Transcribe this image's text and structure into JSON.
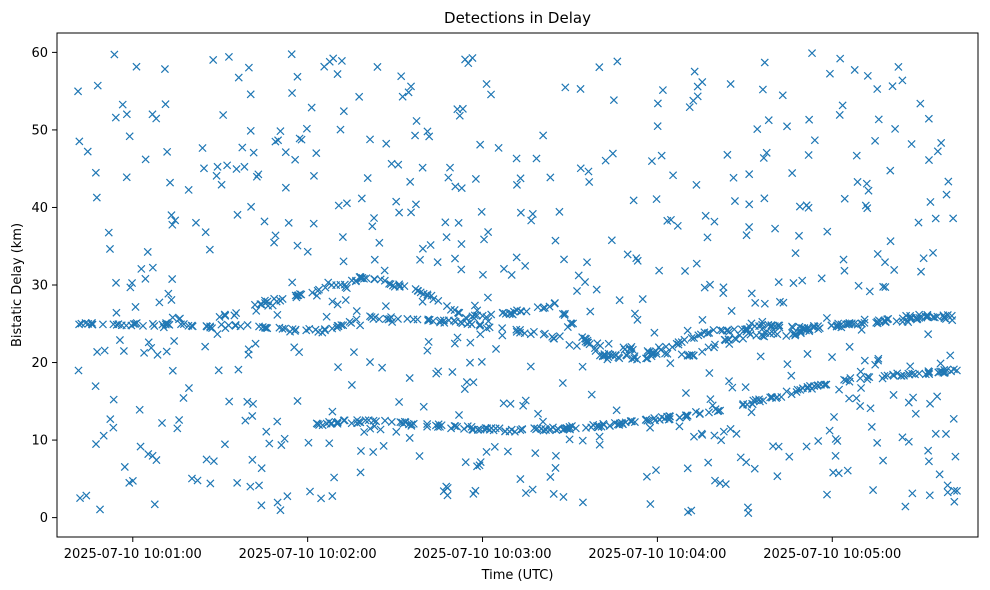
{
  "chart_data": {
    "type": "scatter",
    "title": "Detections in Delay",
    "xlabel": "Time (UTC)",
    "ylabel": "Bistatic Delay (km)",
    "x_start": "2025-07-10 10:00:40",
    "x_end": "2025-07-10 10:05:43",
    "xlim": [
      "2025-07-10 10:00:34",
      "2025-07-10 10:05:50"
    ],
    "ylim": [
      -2.5,
      62.5
    ],
    "xticks": [
      "2025-07-10 10:01:00",
      "2025-07-10 10:02:00",
      "2025-07-10 10:03:00",
      "2025-07-10 10:04:00",
      "2025-07-10 10:05:00"
    ],
    "yticks": [
      0,
      10,
      20,
      30,
      40,
      50,
      60
    ],
    "marker": "x",
    "color": "#1f77b4",
    "grid": false,
    "tracks": [
      {
        "t": [
          0,
          25,
          60,
          85,
          100,
          130,
          210,
          230,
          245,
          255,
          275,
          303
        ],
        "delay": [
          25.2,
          24.8,
          24.6,
          24.0,
          25.8,
          25.3,
          20.7,
          23.8,
          23.5,
          24.5,
          25.2,
          26.0
        ]
      },
      {
        "t": [
          80,
          100,
          130,
          150,
          170,
          190,
          210,
          230,
          245,
          260,
          280,
          303
        ],
        "delay": [
          12.0,
          12.5,
          11.7,
          11.3,
          11.6,
          12.2,
          13.2,
          14.6,
          16.0,
          17.5,
          18.3,
          19.0
        ]
      },
      {
        "t": [
          45,
          55,
          65,
          75,
          85,
          100,
          120,
          135,
          150,
          165,
          180,
          195,
          215,
          235,
          255,
          275,
          290,
          303
        ],
        "delay": [
          25.0,
          26.5,
          27.8,
          28.5,
          29.5,
          31.0,
          29.0,
          25.8,
          26.4,
          27.5,
          21.0,
          20.5,
          23.8,
          24.7,
          24.5,
          25.5,
          26.0,
          25.6
        ]
      }
    ],
    "noise_points": 620,
    "track_points": 620
  }
}
